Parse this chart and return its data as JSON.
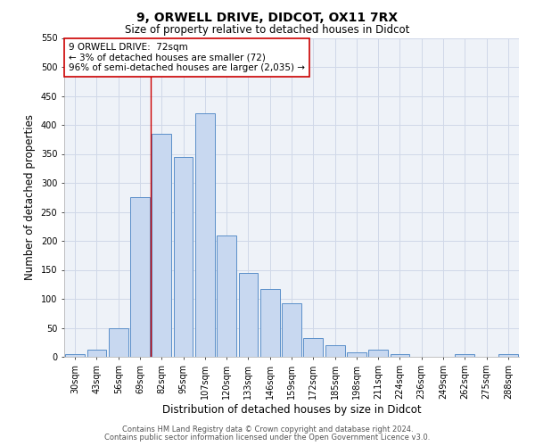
{
  "title1": "9, ORWELL DRIVE, DIDCOT, OX11 7RX",
  "title2": "Size of property relative to detached houses in Didcot",
  "xlabel": "Distribution of detached houses by size in Didcot",
  "ylabel": "Number of detached properties",
  "categories": [
    "30sqm",
    "43sqm",
    "56sqm",
    "69sqm",
    "82sqm",
    "95sqm",
    "107sqm",
    "120sqm",
    "133sqm",
    "146sqm",
    "159sqm",
    "172sqm",
    "185sqm",
    "198sqm",
    "211sqm",
    "224sqm",
    "236sqm",
    "249sqm",
    "262sqm",
    "275sqm",
    "288sqm"
  ],
  "values": [
    5,
    12,
    50,
    275,
    385,
    345,
    420,
    210,
    145,
    117,
    92,
    32,
    20,
    8,
    12,
    4,
    0,
    0,
    5,
    0,
    5
  ],
  "bar_color": "#c8d8f0",
  "bar_edge_color": "#5b8fc9",
  "vline_index": 3,
  "vline_color": "#cc0000",
  "annotation_line1": "9 ORWELL DRIVE:  72sqm",
  "annotation_line2": "← 3% of detached houses are smaller (72)",
  "annotation_line3": "96% of semi-detached houses are larger (2,035) →",
  "annotation_box_color": "#ffffff",
  "annotation_box_edge": "#cc0000",
  "ylim": [
    0,
    550
  ],
  "yticks": [
    0,
    50,
    100,
    150,
    200,
    250,
    300,
    350,
    400,
    450,
    500,
    550
  ],
  "grid_color": "#d0d8e8",
  "background_color": "#eef2f8",
  "title1_fontsize": 10,
  "title2_fontsize": 8.5,
  "xlabel_fontsize": 8.5,
  "ylabel_fontsize": 8.5,
  "tick_fontsize": 7,
  "annotation_fontsize": 7.5,
  "footer1": "Contains HM Land Registry data © Crown copyright and database right 2024.",
  "footer2": "Contains public sector information licensed under the Open Government Licence v3.0.",
  "footer_fontsize": 6.0
}
